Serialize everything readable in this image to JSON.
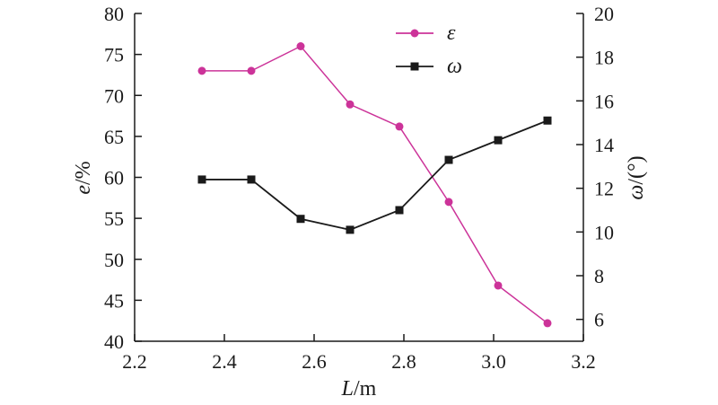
{
  "chart_data": {
    "type": "line",
    "x": [
      2.35,
      2.46,
      2.57,
      2.68,
      2.79,
      2.9,
      3.01,
      3.12
    ],
    "xlabel": {
      "var": "L",
      "unit": "/m"
    },
    "ylabel": {
      "var": "e",
      "unit": "/%"
    },
    "y2label": {
      "var": "ω",
      "unit": "/(°)"
    },
    "xlim": [
      2.2,
      3.2
    ],
    "ylim": [
      40,
      80
    ],
    "y2lim": [
      5,
      20
    ],
    "x_ticks": [
      "2.2",
      "2.4",
      "2.6",
      "2.8",
      "3.0",
      "3.2"
    ],
    "y_ticks": [
      "40",
      "45",
      "50",
      "55",
      "60",
      "65",
      "70",
      "75",
      "80"
    ],
    "y2_ticks": [
      "6",
      "8",
      "10",
      "12",
      "14",
      "16",
      "18",
      "20"
    ],
    "grid": false,
    "legend_position": "top-center",
    "series": [
      {
        "name": "ε",
        "axis": "left",
        "marker": "circle",
        "color": "#cc3399",
        "values": [
          73,
          73,
          76,
          68.9,
          66.2,
          57,
          46.8,
          42.2
        ]
      },
      {
        "name": "ω",
        "axis": "right",
        "marker": "square",
        "color": "#1a1a1a",
        "values": [
          12.4,
          12.4,
          10.6,
          10.1,
          11.0,
          13.3,
          14.2,
          15.1
        ]
      }
    ]
  }
}
